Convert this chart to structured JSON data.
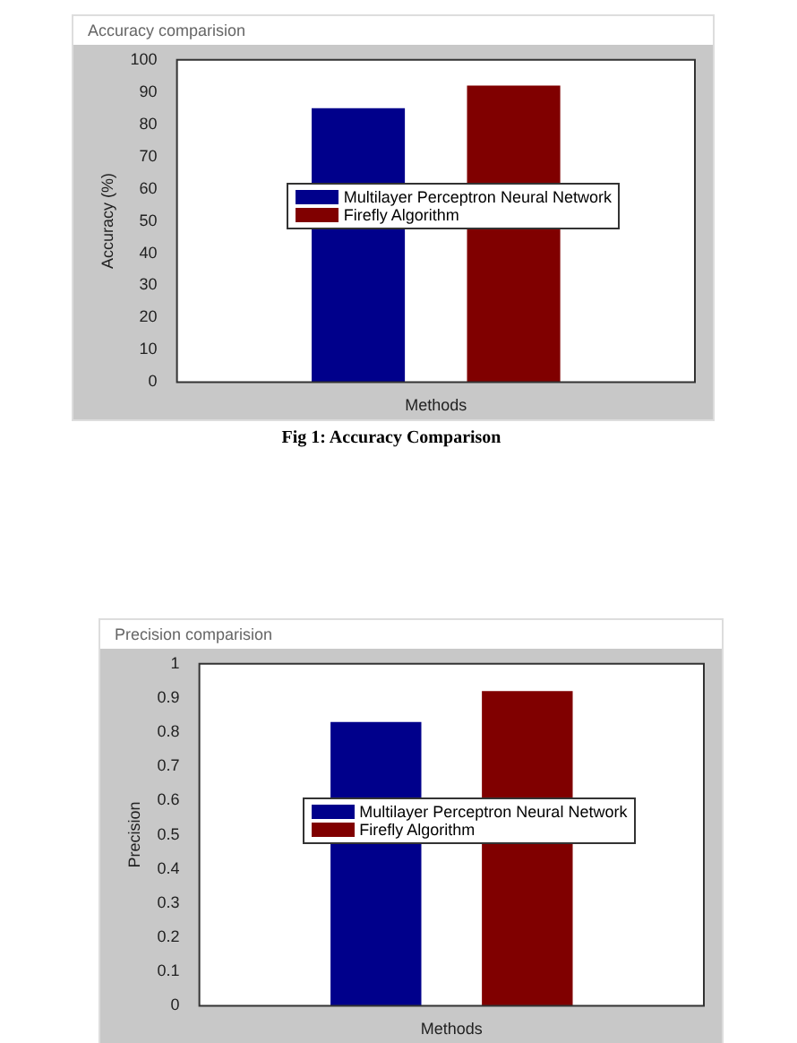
{
  "chart_data": [
    {
      "type": "bar",
      "title": "Accuracy comparision",
      "xlabel": "Methods",
      "ylabel": "Accuracy (%)",
      "categories": [
        null
      ],
      "series": [
        {
          "name": "Multilayer Perceptron Neural Network",
          "color": "#00008b",
          "values": [
            85
          ]
        },
        {
          "name": "Firefly Algorithm",
          "color": "#800000",
          "values": [
            92
          ]
        }
      ],
      "ylim": [
        0,
        100
      ],
      "yticks": [
        0,
        10,
        20,
        30,
        40,
        50,
        60,
        70,
        80,
        90,
        100
      ],
      "legend": "center",
      "annotations": [
        "Fig 1: Accuracy Comparison"
      ]
    },
    {
      "type": "bar",
      "title": "Precision comparision",
      "xlabel": "Methods",
      "ylabel": "Precision",
      "categories": [
        null
      ],
      "series": [
        {
          "name": "Multilayer Perceptron Neural Network",
          "color": "#00008b",
          "values": [
            0.83
          ]
        },
        {
          "name": "Firefly Algorithm",
          "color": "#800000",
          "values": [
            0.92
          ]
        }
      ],
      "ylim": [
        0,
        1
      ],
      "yticks": [
        0,
        0.1,
        0.2,
        0.3,
        0.4,
        0.5,
        0.6,
        0.7,
        0.8,
        0.9,
        1
      ],
      "legend": "center"
    }
  ]
}
